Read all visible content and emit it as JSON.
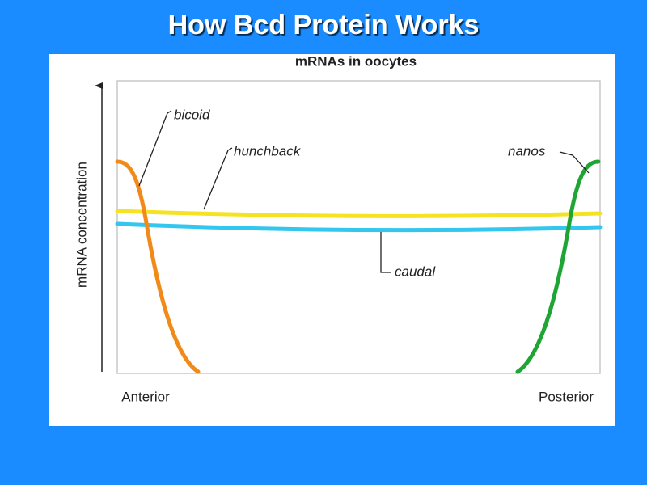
{
  "slide": {
    "title": "How Bcd Protein Works"
  },
  "figure": {
    "title": "mRNAs in oocytes",
    "y_axis_label": "mRNA concentration",
    "x_start_label": "Anterior",
    "x_end_label": "Posterior",
    "curves": [
      {
        "label": "bicoid"
      },
      {
        "label": "hunchback"
      },
      {
        "label": "nanos"
      },
      {
        "label": "caudal"
      }
    ]
  }
}
